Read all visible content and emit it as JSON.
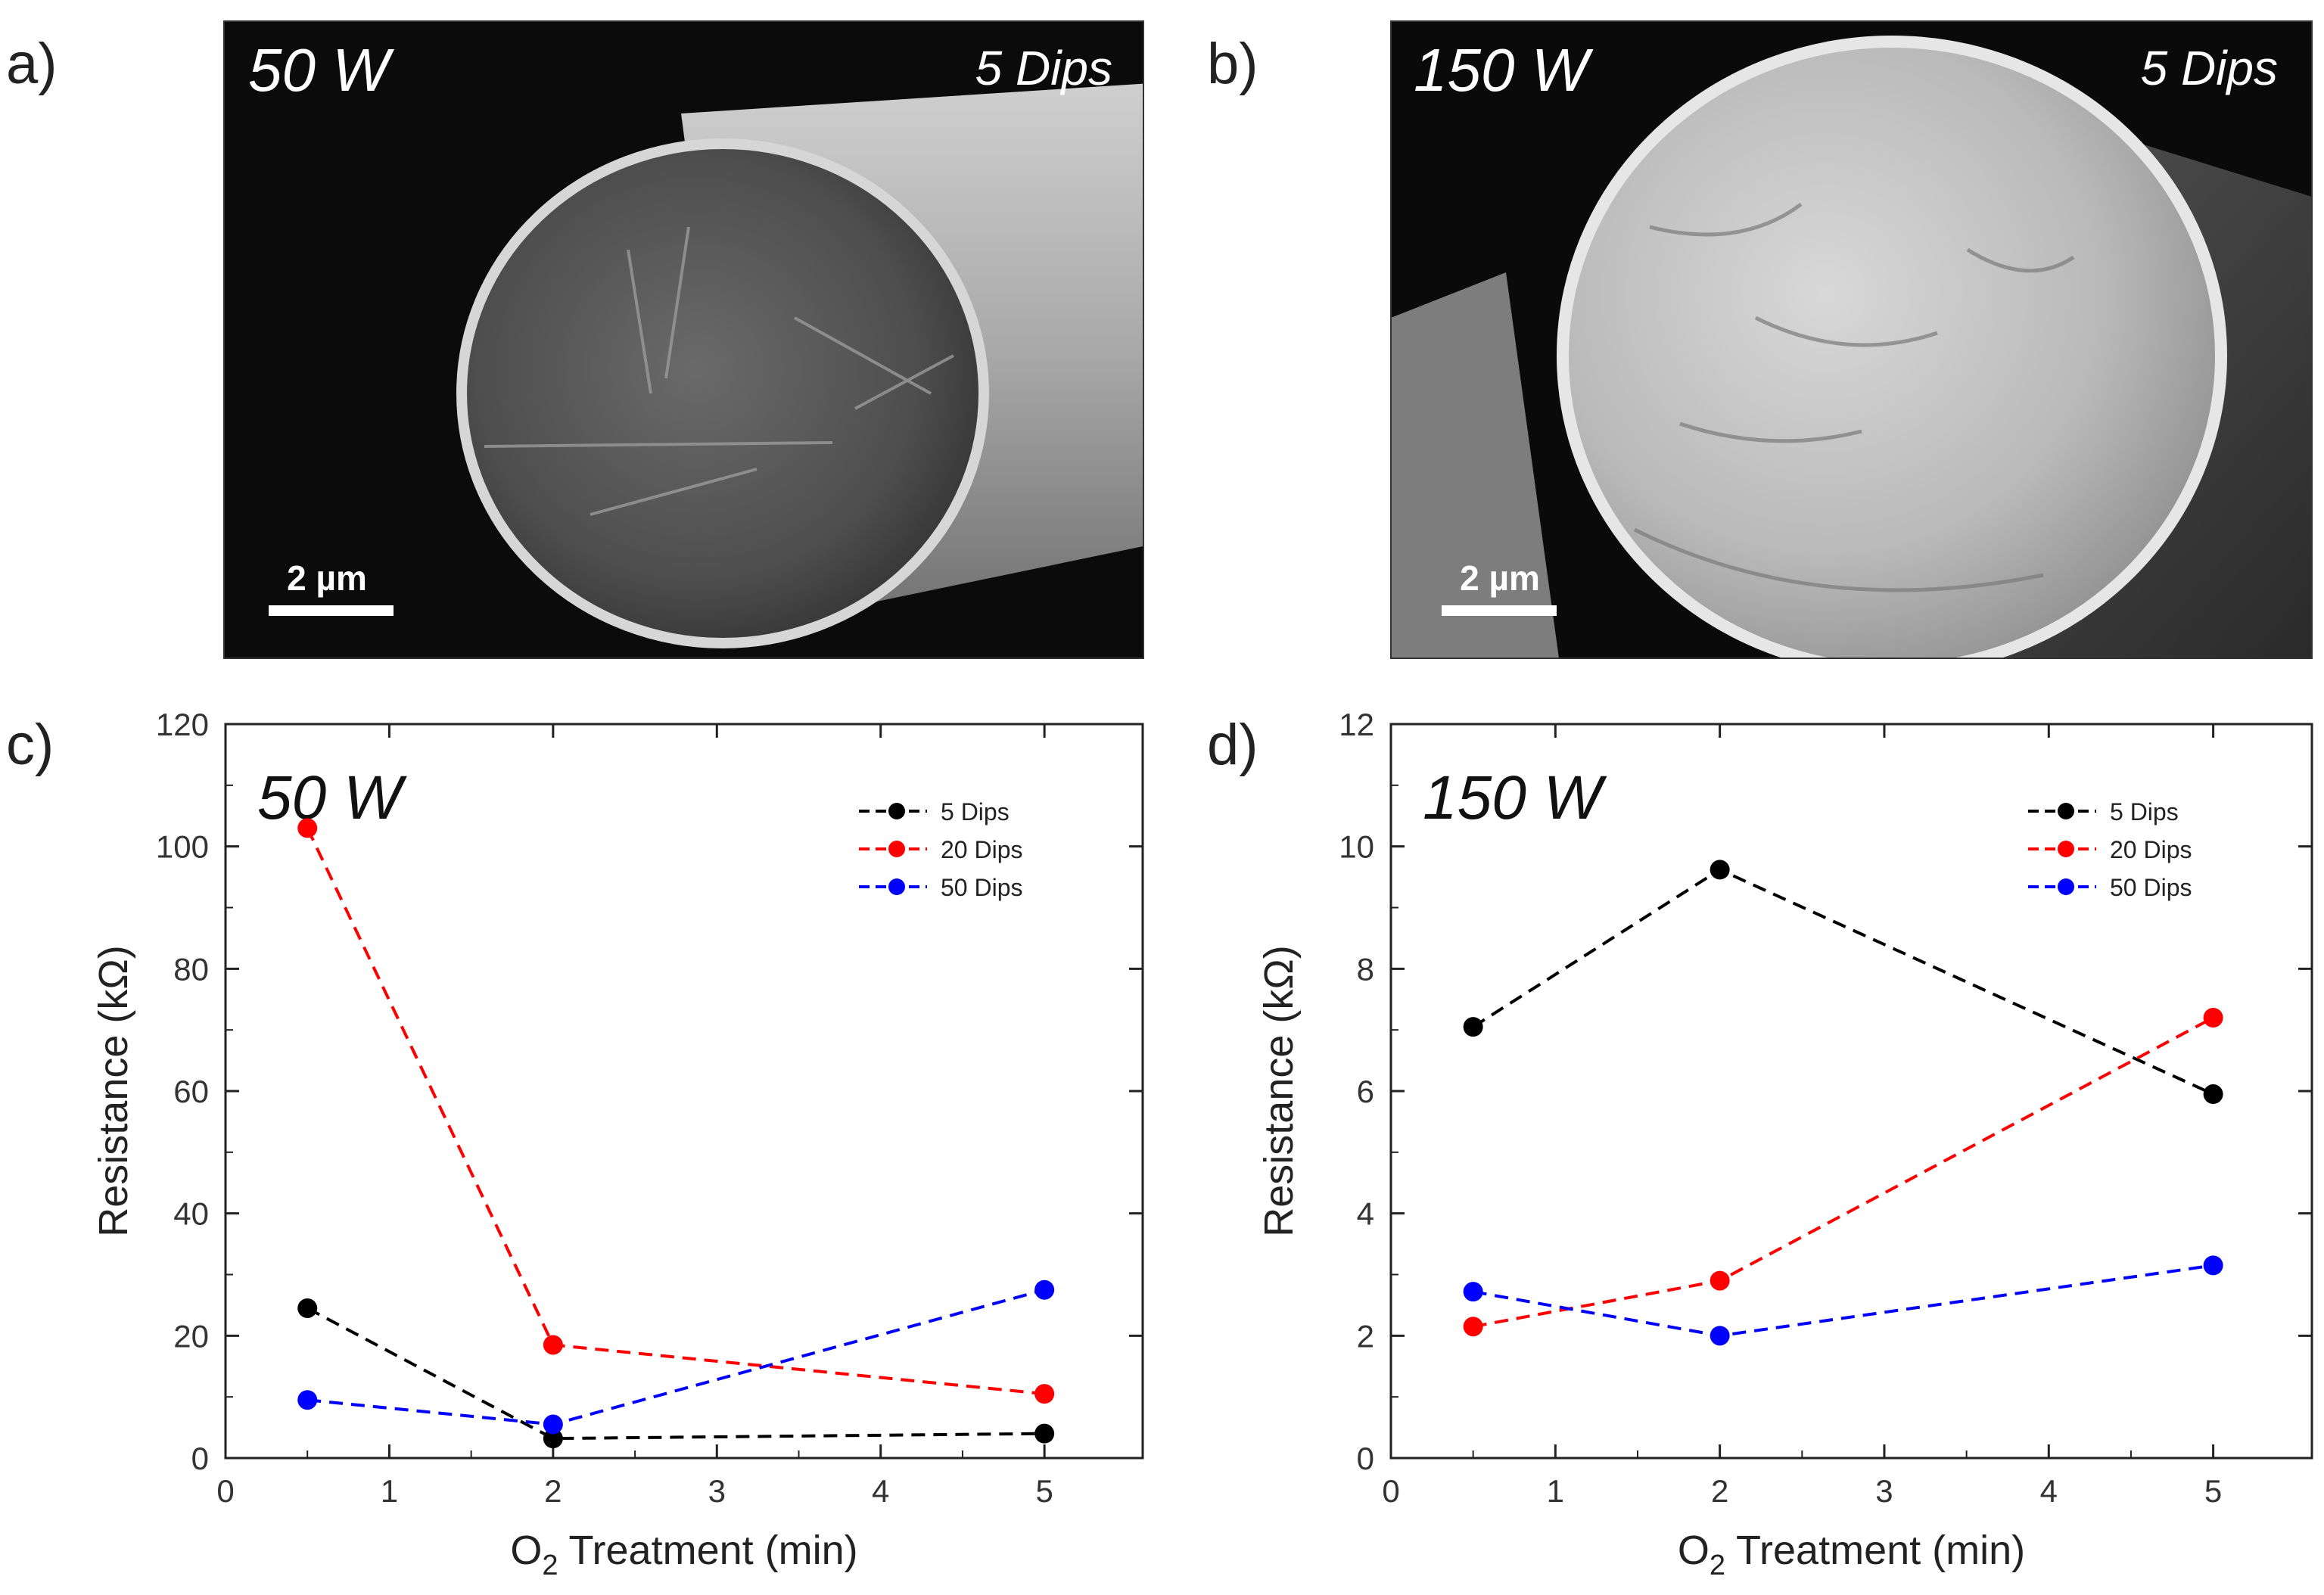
{
  "panels": {
    "a": {
      "letter": "a)",
      "title": "50 W",
      "dips": "5 Dips",
      "scale_bar": "2 µm",
      "description": "SEM cross-section of fiber"
    },
    "b": {
      "letter": "b)",
      "title": "150 W",
      "dips": "5 Dips",
      "scale_bar": "2 µm",
      "description": "SEM cross-section of fiber"
    }
  },
  "chart_data": [
    {
      "panel": "c)",
      "type": "line",
      "title": "50 W",
      "xlabel_main": "O",
      "xlabel_sub": "2",
      "xlabel_rest": " Treatment (min)",
      "ylabel": "Resistance (kΩ)",
      "xlim": [
        0,
        5.6
      ],
      "ylim": [
        0,
        120
      ],
      "xticks": [
        0,
        1,
        2,
        3,
        4,
        5
      ],
      "yticks": [
        0,
        20,
        40,
        60,
        80,
        100,
        120
      ],
      "x": [
        0.5,
        2,
        5
      ],
      "series": [
        {
          "name": "5 Dips",
          "color": "#000000",
          "values": [
            24.5,
            3.2,
            4
          ]
        },
        {
          "name": "20 Dips",
          "color": "#ff0000",
          "values": [
            103,
            18.5,
            10.5
          ]
        },
        {
          "name": "50 Dips",
          "color": "#0000ff",
          "values": [
            9.5,
            5.5,
            27.5
          ]
        }
      ]
    },
    {
      "panel": "d)",
      "type": "line",
      "title": "150 W",
      "xlabel_main": "O",
      "xlabel_sub": "2",
      "xlabel_rest": " Treatment (min)",
      "ylabel": "Resistance (kΩ)",
      "xlim": [
        0,
        5.6
      ],
      "ylim": [
        0,
        12
      ],
      "xticks": [
        0,
        1,
        2,
        3,
        4,
        5
      ],
      "yticks": [
        0,
        2,
        4,
        6,
        8,
        10,
        12
      ],
      "x": [
        0.5,
        2,
        5
      ],
      "series": [
        {
          "name": "5 Dips",
          "color": "#000000",
          "values": [
            7.05,
            9.62,
            5.95
          ]
        },
        {
          "name": "20 Dips",
          "color": "#ff0000",
          "values": [
            2.15,
            2.9,
            7.2
          ]
        },
        {
          "name": "50 Dips",
          "color": "#0000ff",
          "values": [
            2.72,
            2.0,
            3.15
          ]
        }
      ]
    }
  ]
}
